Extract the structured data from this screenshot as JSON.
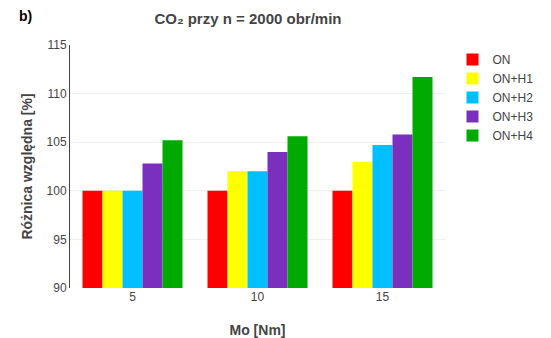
{
  "chart_data": {
    "type": "bar",
    "title": "CO₂ przy n = 2000 obr/min",
    "xlabel": "Mo [Nm]",
    "ylabel": "Różnica względna [%]",
    "annotations": [
      "b)"
    ],
    "categories": [
      "5",
      "10",
      "15"
    ],
    "series": [
      {
        "name": "ON",
        "color": "#FF0000",
        "values": [
          100.0,
          100.0,
          100.0
        ]
      },
      {
        "name": "ON+H1",
        "color": "#FFFF00",
        "values": [
          100.0,
          102.0,
          103.0
        ]
      },
      {
        "name": "ON+H2",
        "color": "#00BFFF",
        "values": [
          100.0,
          102.0,
          104.7
        ]
      },
      {
        "name": "ON+H3",
        "color": "#7B2FBE",
        "values": [
          102.8,
          104.0,
          105.8
        ]
      },
      {
        "name": "ON+H4",
        "color": "#00AA00",
        "values": [
          105.2,
          105.6,
          111.7
        ]
      }
    ],
    "ylim": [
      90,
      115
    ],
    "yticks": [
      90,
      95,
      100,
      105,
      110,
      115
    ],
    "grid": true,
    "legend": "upper right"
  }
}
